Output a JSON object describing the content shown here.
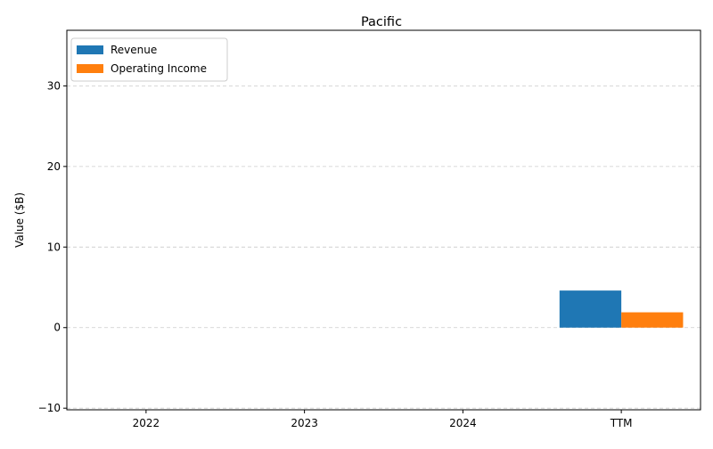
{
  "chart_data": {
    "type": "bar",
    "title": "Pacific",
    "xlabel": "",
    "ylabel": "Value ($B)",
    "categories": [
      "2022",
      "2023",
      "2024",
      "TTM"
    ],
    "series": [
      {
        "name": "Revenue",
        "color": "#1f77b4",
        "values": [
          null,
          null,
          null,
          4.6
        ]
      },
      {
        "name": "Operating Income",
        "color": "#ff7f0e",
        "values": [
          null,
          null,
          null,
          1.9
        ]
      }
    ],
    "ylim": [
      -10.2,
      36.9
    ],
    "yticks": [
      -10,
      0,
      10,
      20,
      30
    ],
    "ytick_labels": [
      "−10",
      "0",
      "10",
      "20",
      "30"
    ],
    "grid": "y-dashed",
    "legend": "top-left"
  }
}
